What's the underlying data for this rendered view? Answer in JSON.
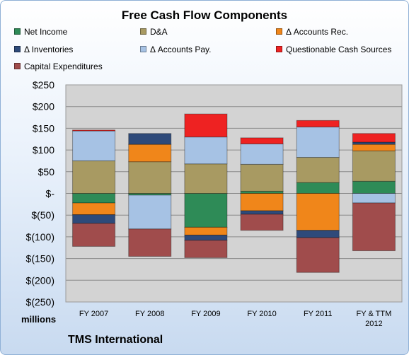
{
  "chart_data": {
    "type": "bar",
    "stacked": true,
    "title": "Free Cash Flow Components",
    "units_label": "millions",
    "footer": "TMS International",
    "categories": [
      "FY 2007",
      "FY 2008",
      "FY 2009",
      "FY 2010",
      "FY 2011",
      "FY & TTM\n2012"
    ],
    "ylim": [
      -250,
      250
    ],
    "yticks": [
      250,
      200,
      150,
      100,
      50,
      0,
      -50,
      -100,
      -150,
      -200,
      -250
    ],
    "ytick_labels": [
      "$250",
      "$200",
      "$150",
      "$100",
      "$50",
      "$-",
      "$(50)",
      "$(100)",
      "$(150)",
      "$(200)",
      "$(250)"
    ],
    "grid": true,
    "legend_position": "top",
    "series": [
      {
        "name": "Net Income",
        "color": "#2e8b57",
        "values": [
          -22,
          -4,
          -78,
          5,
          25,
          28
        ]
      },
      {
        "name": "D&A",
        "color": "#a89a62",
        "values": [
          75,
          73,
          68,
          62,
          58,
          70
        ]
      },
      {
        "name": "Δ Accounts Rec.",
        "color": "#f0861a",
        "values": [
          -27,
          40,
          -18,
          -40,
          -85,
          15
        ]
      },
      {
        "name": "Δ Inventories",
        "color": "#2e4a7a",
        "values": [
          -20,
          25,
          -12,
          -8,
          -17,
          5
        ]
      },
      {
        "name": "Δ Accounts Pay.",
        "color": "#a6c2e4",
        "values": [
          69,
          -78,
          62,
          47,
          70,
          -22
        ]
      },
      {
        "name": "Questionable Cash Sources",
        "color": "#ee2222",
        "values": [
          2,
          0,
          53,
          14,
          15,
          20
        ]
      },
      {
        "name": "Capital Expenditures",
        "color": "#a04c4c",
        "values": [
          -53,
          -63,
          -40,
          -37,
          -80,
          -110
        ]
      }
    ]
  }
}
